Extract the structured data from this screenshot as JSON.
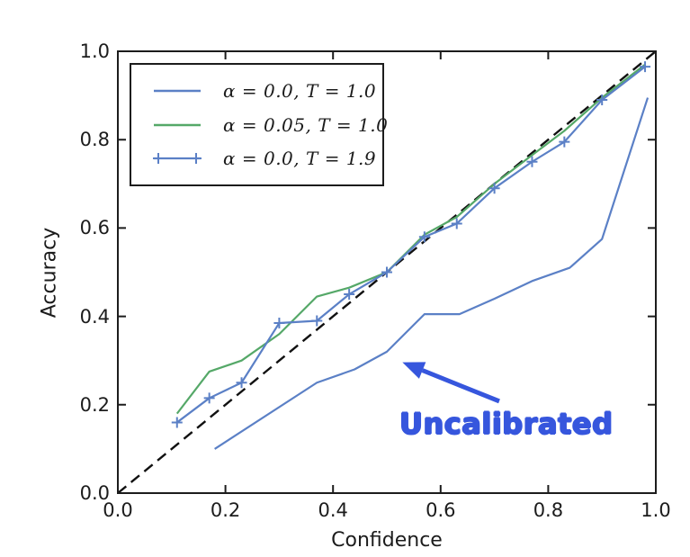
{
  "figure": {
    "background": "#ffffff",
    "axis_color": "#1c1c1c",
    "text_color": "#1c1c1c"
  },
  "chart_data": {
    "type": "line",
    "title": "",
    "xlabel": "Confidence",
    "ylabel": "Accuracy",
    "xlim": [
      0.0,
      1.0
    ],
    "ylim": [
      0.0,
      1.0
    ],
    "xticks": [
      0.0,
      0.2,
      0.4,
      0.6,
      0.8,
      1.0
    ],
    "yticks": [
      0.0,
      0.2,
      0.4,
      0.6,
      0.8,
      1.0
    ],
    "xticklabels": [
      "0.0",
      "0.2",
      "0.4",
      "0.6",
      "0.8",
      "1.0"
    ],
    "yticklabels": [
      "0.0",
      "0.2",
      "0.4",
      "0.6",
      "0.8",
      "1.0"
    ],
    "grid": false,
    "legend_position": "upper left",
    "reference_line": {
      "name": "perfect-calibration-diagonal",
      "style": "dashed",
      "color": "#111111",
      "x": [
        0.0,
        1.0
      ],
      "y": [
        0.0,
        1.0
      ]
    },
    "series": [
      {
        "name": "uncalibrated",
        "label": "α = 0.0, T = 1.0",
        "color": "#5b80c6",
        "marker": "none",
        "x": [
          0.18,
          0.37,
          0.44,
          0.5,
          0.57,
          0.635,
          0.7,
          0.77,
          0.84,
          0.9,
          0.985
        ],
        "y": [
          0.1,
          0.25,
          0.28,
          0.32,
          0.405,
          0.405,
          0.44,
          0.48,
          0.51,
          0.575,
          0.895
        ]
      },
      {
        "name": "calibrated-alpha-0.05",
        "label": "α = 0.05, T = 1.0",
        "color": "#55a868",
        "marker": "none",
        "x": [
          0.11,
          0.17,
          0.23,
          0.3,
          0.37,
          0.43,
          0.5,
          0.57,
          0.63,
          0.7,
          0.77,
          0.83,
          0.9,
          0.98
        ],
        "y": [
          0.18,
          0.275,
          0.3,
          0.36,
          0.445,
          0.465,
          0.5,
          0.585,
          0.625,
          0.7,
          0.765,
          0.82,
          0.895,
          0.97
        ]
      },
      {
        "name": "temperature-scaled-T-1.9",
        "label": "α = 0.0, T = 1.9",
        "color": "#5b80c6",
        "marker": "plus",
        "x": [
          0.11,
          0.17,
          0.23,
          0.3,
          0.37,
          0.43,
          0.5,
          0.57,
          0.63,
          0.7,
          0.77,
          0.83,
          0.9,
          0.98
        ],
        "y": [
          0.16,
          0.215,
          0.25,
          0.385,
          0.39,
          0.45,
          0.5,
          0.58,
          0.61,
          0.69,
          0.75,
          0.795,
          0.89,
          0.965
        ]
      }
    ],
    "annotation": {
      "text": "Uncalibrated",
      "color": "#3656dd",
      "text_x": 0.722,
      "text_y": 0.157,
      "arrow_from": [
        0.709,
        0.208
      ],
      "arrow_to": [
        0.529,
        0.296
      ]
    }
  }
}
